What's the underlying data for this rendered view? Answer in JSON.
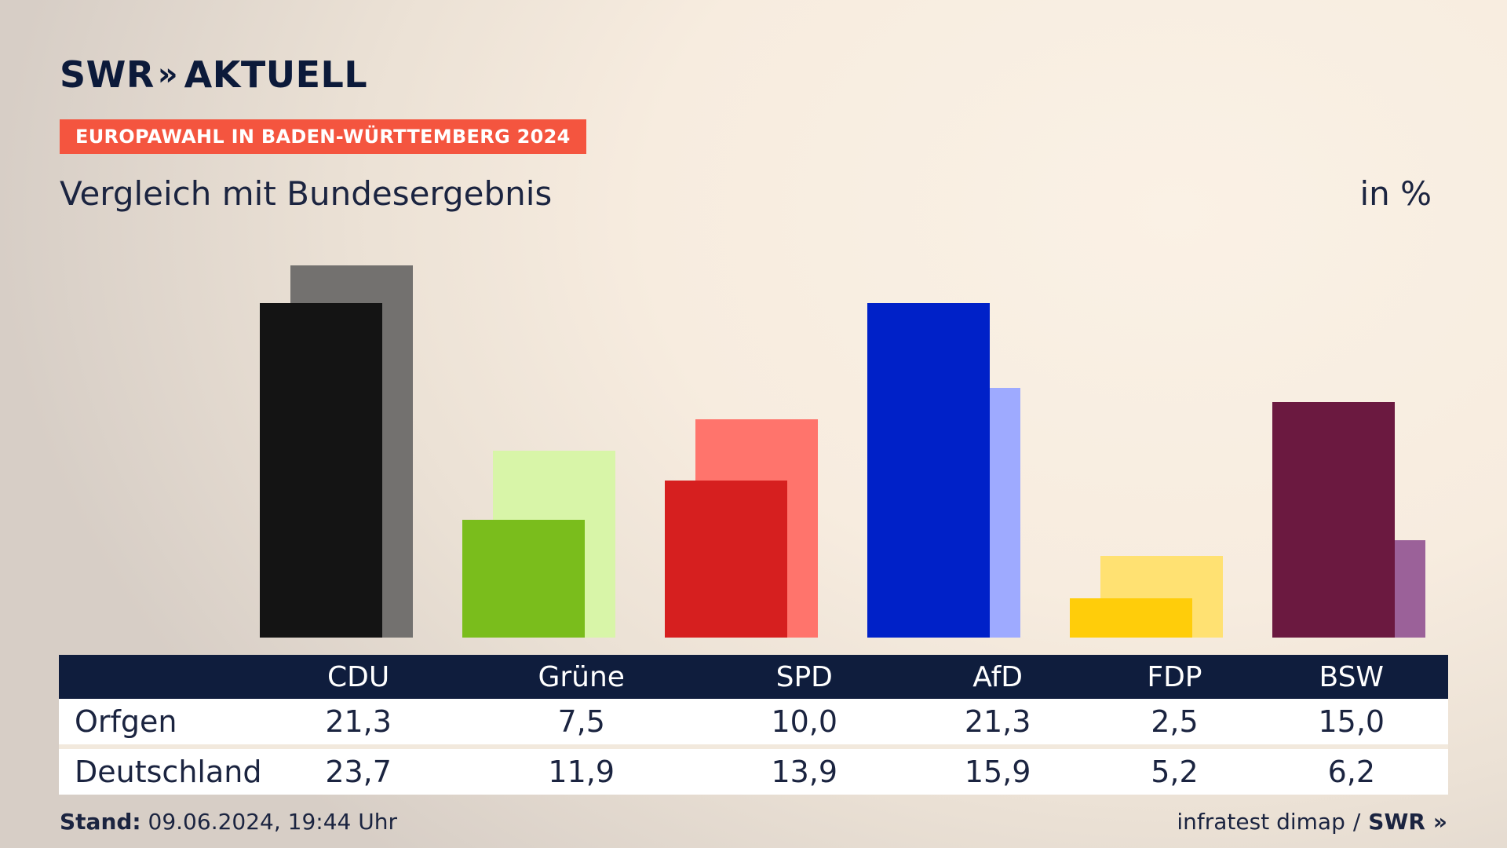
{
  "brand": {
    "name": "SWR",
    "chevrons": "»",
    "product": "AKTUELL"
  },
  "badge": "EUROPAWAHL IN BADEN-WÜRTTEMBERG 2024",
  "subtitle": "Vergleich mit Bundesergebnis",
  "unit": "in %",
  "chart_data": {
    "type": "bar",
    "title": "Vergleich mit Bundesergebnis",
    "ylabel": "in %",
    "ylim": [
      0,
      25
    ],
    "categories": [
      "CDU",
      "Grüne",
      "SPD",
      "AfD",
      "FDP",
      "BSW"
    ],
    "series": [
      {
        "name": "Orfgen",
        "values": [
          21.3,
          7.5,
          10.0,
          21.3,
          2.5,
          15.0
        ]
      },
      {
        "name": "Deutschland",
        "values": [
          23.7,
          11.9,
          13.9,
          15.9,
          5.2,
          6.2
        ]
      }
    ],
    "colors": {
      "primary": [
        "#141414",
        "#7abd1c",
        "#d61f1f",
        "#0021c8",
        "#ffcd0a",
        "#6b1940"
      ],
      "secondary": [
        "#73716f",
        "#d8f5a8",
        "#ff746c",
        "#9eaaff",
        "#ffe172",
        "#9b6199"
      ]
    }
  },
  "table": {
    "headers": [
      "CDU",
      "Grüne",
      "SPD",
      "AfD",
      "FDP",
      "BSW"
    ],
    "rows": [
      {
        "label": "Orfgen",
        "values": [
          "21,3",
          "7,5",
          "10,0",
          "21,3",
          "2,5",
          "15,0"
        ]
      },
      {
        "label": "Deutschland",
        "values": [
          "23,7",
          "11,9",
          "13,9",
          "15,9",
          "5,2",
          "6,2"
        ]
      }
    ]
  },
  "footer": {
    "stand_label": "Stand:",
    "stand_value": "09.06.2024, 19:44 Uhr",
    "source": "infratest dimap",
    "separator": "/",
    "source_brand": "SWR",
    "source_chevrons": "»"
  }
}
